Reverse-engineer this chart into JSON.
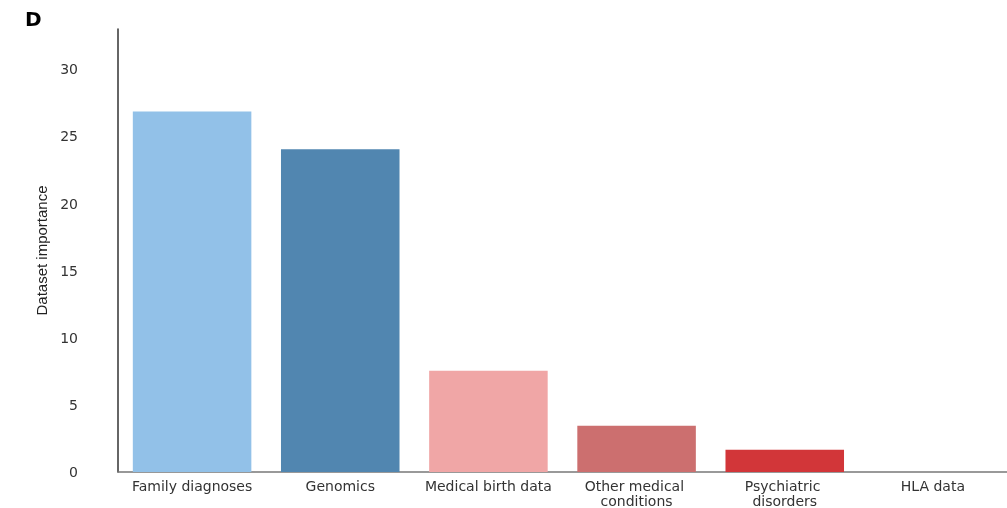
{
  "chart_data": {
    "type": "bar",
    "title": "D",
    "ylabel": "Dataset importance",
    "categories": [
      "Family diagnoses",
      "Genomics",
      "Medical birth data",
      "Other medical conditions",
      "Psychiatric disorders",
      "HLA data"
    ],
    "values": [
      26.85,
      24.05,
      7.55,
      3.45,
      1.65,
      0
    ],
    "colors": [
      "#92c1e8",
      "#5186b0",
      "#f0a6a6",
      "#cc6f6f",
      "#d23639",
      "#d23639"
    ],
    "ylim": [
      0,
      33
    ],
    "yticks": [
      0,
      5,
      10,
      15,
      20,
      25,
      30
    ],
    "grid": false
  }
}
